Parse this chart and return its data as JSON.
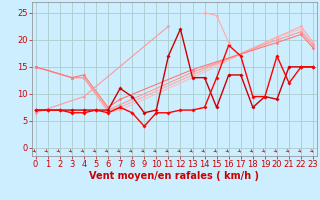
{
  "background_color": "#cceeff",
  "grid_color": "#aacccc",
  "xlabel": "Vent moyen/en rafales ( km/h )",
  "xlabel_color": "#cc0000",
  "xlabel_fontsize": 7,
  "tick_color": "#cc0000",
  "tick_fontsize": 6,
  "ylim": [
    -1.5,
    27
  ],
  "xlim": [
    -0.3,
    23.3
  ],
  "yticks": [
    0,
    5,
    10,
    15,
    20,
    25
  ],
  "xticks": [
    0,
    1,
    2,
    3,
    4,
    5,
    6,
    7,
    8,
    9,
    10,
    11,
    12,
    13,
    14,
    15,
    16,
    17,
    18,
    19,
    20,
    21,
    22,
    23
  ],
  "lines": [
    {
      "x": [
        0,
        3,
        4,
        6,
        7,
        13,
        20,
        22,
        23
      ],
      "y": [
        15.0,
        13.0,
        13.0,
        6.5,
        7.0,
        13.0,
        20.5,
        22.0,
        19.0
      ],
      "color": "#ffbbbb",
      "lw": 0.8,
      "marker": "o",
      "ms": 1.8
    },
    {
      "x": [
        0,
        3,
        4,
        6,
        7,
        13,
        20,
        22,
        23
      ],
      "y": [
        15.0,
        13.0,
        13.0,
        7.0,
        7.5,
        13.5,
        20.5,
        22.5,
        19.5
      ],
      "color": "#ffaaaa",
      "lw": 0.8,
      "marker": "o",
      "ms": 1.8
    },
    {
      "x": [
        0,
        3,
        4,
        6,
        7,
        13,
        20,
        22,
        23
      ],
      "y": [
        15.0,
        13.0,
        13.0,
        7.0,
        8.0,
        14.0,
        20.0,
        21.5,
        19.0
      ],
      "color": "#ff9999",
      "lw": 0.8,
      "marker": "o",
      "ms": 1.8
    },
    {
      "x": [
        0,
        3,
        4,
        6,
        7,
        13,
        20,
        22,
        23
      ],
      "y": [
        15.0,
        13.0,
        13.5,
        7.5,
        9.0,
        14.5,
        19.5,
        21.0,
        18.5
      ],
      "color": "#ff7777",
      "lw": 0.8,
      "marker": "o",
      "ms": 1.8
    },
    {
      "x": [
        0,
        4,
        11
      ],
      "y": [
        6.5,
        9.5,
        22.5
      ],
      "color": "#ff9999",
      "lw": 0.8,
      "marker": "o",
      "ms": 1.8
    },
    {
      "x": [
        0,
        1,
        2,
        3,
        4,
        5,
        6,
        7,
        8,
        9,
        10,
        11,
        12,
        13,
        14,
        15,
        16,
        17,
        18,
        19,
        20,
        21,
        22,
        23
      ],
      "y": [
        7.0,
        7.0,
        7.0,
        7.0,
        7.0,
        7.0,
        7.0,
        11.0,
        9.5,
        6.5,
        7.0,
        17.0,
        22.0,
        13.0,
        13.0,
        7.5,
        13.5,
        13.5,
        7.5,
        9.5,
        9.0,
        15.0,
        15.0,
        15.0
      ],
      "color": "#cc0000",
      "lw": 1.0,
      "marker": "D",
      "ms": 1.8
    },
    {
      "x": [
        0,
        1,
        2,
        3,
        4,
        5,
        6,
        7,
        8,
        9,
        10,
        11,
        12,
        13,
        14,
        15,
        16,
        17,
        18,
        19,
        20,
        21,
        22,
        23
      ],
      "y": [
        7.0,
        7.0,
        7.0,
        6.5,
        6.5,
        7.0,
        6.5,
        7.5,
        6.5,
        4.0,
        6.5,
        6.5,
        7.0,
        7.0,
        7.5,
        13.0,
        19.0,
        17.0,
        9.5,
        9.5,
        17.0,
        12.0,
        15.0,
        15.0
      ],
      "color": "#ff0000",
      "lw": 1.0,
      "marker": "D",
      "ms": 1.8
    },
    {
      "x": [
        14,
        15,
        16
      ],
      "y": [
        25.0,
        24.5,
        19.5
      ],
      "color": "#ffaaaa",
      "lw": 0.8,
      "marker": "o",
      "ms": 1.8
    }
  ]
}
